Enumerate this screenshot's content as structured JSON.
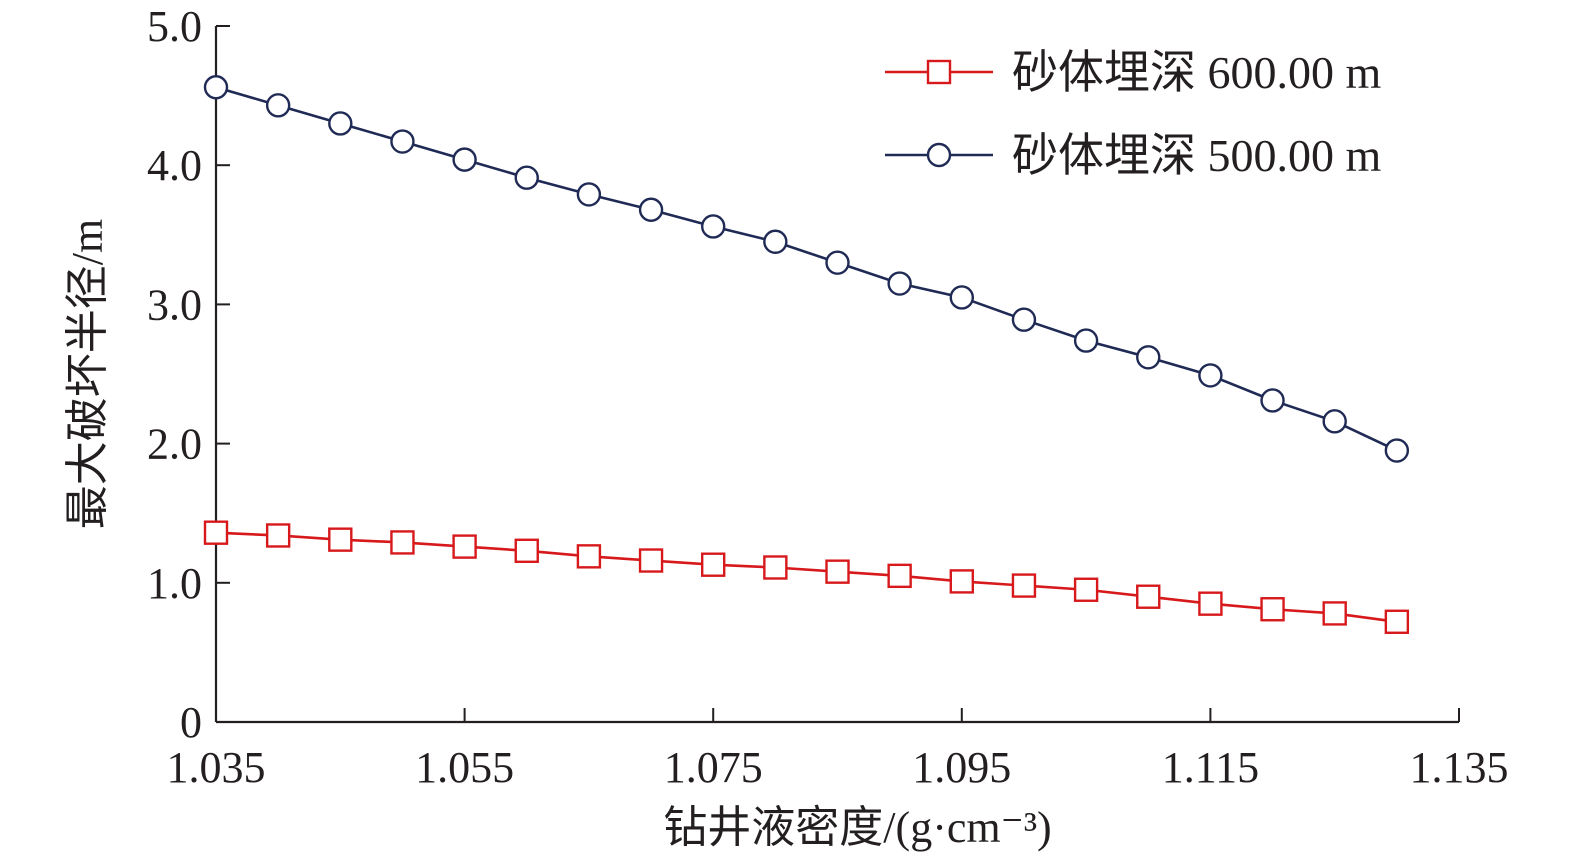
{
  "chart_data": {
    "type": "line",
    "title": "",
    "xlabel": "钻井液密度/(g·cm⁻³)",
    "ylabel": "最大破坏半径/m",
    "xlim": [
      1.035,
      1.135
    ],
    "ylim": [
      0,
      5
    ],
    "xticks": [
      1.035,
      1.055,
      1.075,
      1.095,
      1.115,
      1.135
    ],
    "xtick_labels": [
      "1.035",
      "1.055",
      "1.075",
      "1.095",
      "1.115",
      "1.135"
    ],
    "yticks": [
      0,
      1,
      2,
      3,
      4,
      5
    ],
    "ytick_labels": [
      "0",
      "1.0",
      "2.0",
      "3.0",
      "4.0",
      "5.0"
    ],
    "grid": false,
    "legend_position": "top-right",
    "x": [
      1.035,
      1.04,
      1.045,
      1.05,
      1.055,
      1.06,
      1.065,
      1.07,
      1.075,
      1.08,
      1.085,
      1.09,
      1.095,
      1.1,
      1.105,
      1.11,
      1.115,
      1.12,
      1.125,
      1.13
    ],
    "series": [
      {
        "name": "砂体埋深 600.00 m",
        "marker": "square",
        "color": "#d7191c",
        "values": [
          1.36,
          1.34,
          1.31,
          1.29,
          1.26,
          1.23,
          1.19,
          1.16,
          1.13,
          1.11,
          1.08,
          1.05,
          1.01,
          0.98,
          0.95,
          0.9,
          0.85,
          0.81,
          0.78,
          0.72
        ]
      },
      {
        "name": "砂体埋深 500.00 m",
        "marker": "circle",
        "color": "#1f2a55",
        "values": [
          4.56,
          4.43,
          4.3,
          4.17,
          4.04,
          3.91,
          3.79,
          3.68,
          3.56,
          3.45,
          3.3,
          3.15,
          3.05,
          2.89,
          2.74,
          2.62,
          2.49,
          2.31,
          2.16,
          1.95
        ]
      }
    ]
  }
}
